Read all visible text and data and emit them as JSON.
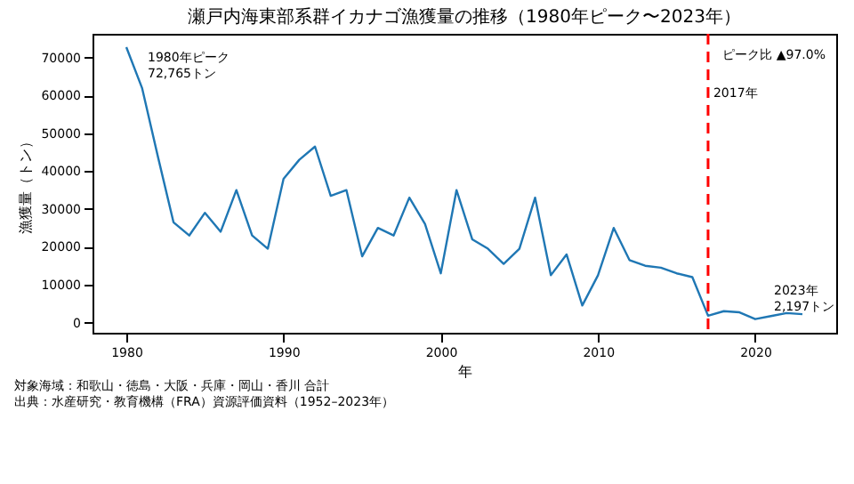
{
  "chart_data": {
    "type": "line",
    "title": "瀬戸内海東部系群イカナゴ漁獲量の推移（1980年ピーク〜2023年）",
    "xlabel": "年",
    "ylabel": "漁獲量（トン）",
    "x": [
      1980,
      1981,
      1982,
      1983,
      1984,
      1985,
      1986,
      1987,
      1988,
      1989,
      1990,
      1991,
      1992,
      1993,
      1994,
      1995,
      1996,
      1997,
      1998,
      1999,
      2000,
      2001,
      2002,
      2003,
      2004,
      2005,
      2006,
      2007,
      2008,
      2009,
      2010,
      2011,
      2012,
      2013,
      2014,
      2015,
      2016,
      2017,
      2018,
      2019,
      2020,
      2021,
      2022,
      2023
    ],
    "series": [
      {
        "color": "#1f77b4",
        "values": [
          72765,
          62000,
          44000,
          26500,
          23000,
          29000,
          24000,
          35000,
          23000,
          19500,
          38000,
          43000,
          46500,
          33500,
          35000,
          17500,
          25000,
          23000,
          33000,
          26000,
          13000,
          35000,
          22000,
          19500,
          15500,
          19500,
          33000,
          12500,
          18000,
          4500,
          12500,
          25000,
          16500,
          15000,
          14500,
          13000,
          12000,
          1800,
          3000,
          2700,
          900,
          1700,
          2500,
          2197
        ]
      }
    ],
    "xlim": [
      1977.85,
      2025.15
    ],
    "xticks": [
      1980,
      1990,
      2000,
      2010,
      2020
    ],
    "ylim": [
      -2700,
      76300
    ],
    "yticks": [
      0,
      10000,
      20000,
      30000,
      40000,
      50000,
      60000,
      70000
    ],
    "grid": false,
    "marker": "none",
    "line_style": "solid",
    "ref_lines": [
      {
        "axis": "x",
        "value": 2017,
        "label": "2017年",
        "color": "#ff0000",
        "line_style": "dashed"
      }
    ],
    "annotations": [
      {
        "text": "1980年ピーク\n72,765トン",
        "x": 1980,
        "y": 72765
      },
      {
        "text": "2023年\n2,197トン",
        "x": 2023,
        "y": 2197
      },
      "ピーク比 ▲97.0%",
      "対象海域：和歌山・徳島・大阪・兵庫・岡山・香川 合計",
      "出典：水産研究・教育機構（FRA）資源評価資料（1952–2023年）"
    ]
  }
}
